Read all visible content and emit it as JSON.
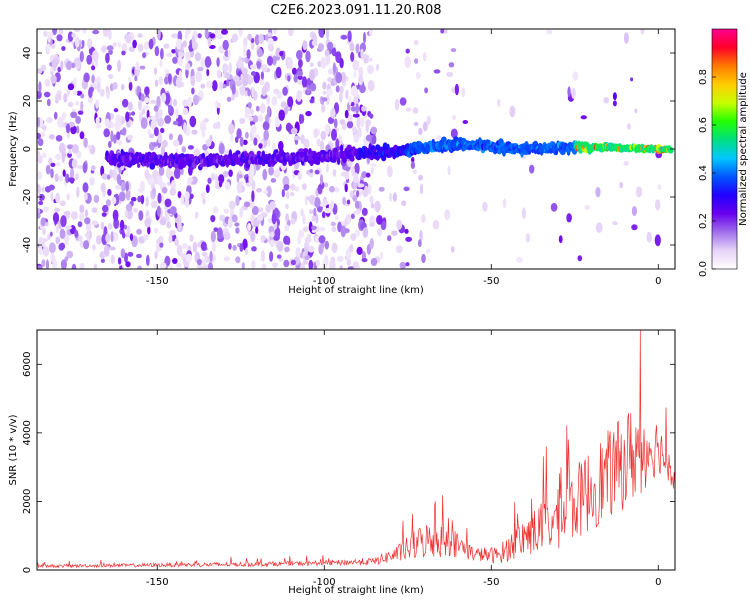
{
  "figure": {
    "title": "C2E6.2023.091.11.20.R08"
  },
  "chart_data": [
    {
      "type": "heatmap",
      "xlabel": "Height of straight line (km)",
      "ylabel": "Frequency (Hz)",
      "xlim": [
        -186,
        5
      ],
      "ylim": [
        -50,
        50
      ],
      "xticks": [
        -150,
        -100,
        -50,
        0
      ],
      "yticks": [
        -40,
        -20,
        0,
        20,
        40
      ],
      "grid": false,
      "colorbar": {
        "label": "Normalized spectral amplitude",
        "range": [
          0,
          1
        ],
        "ticks": [
          0.0,
          0.2,
          0.4,
          0.6,
          0.8
        ],
        "colormap": [
          "#ffffff",
          "#e6d3f7",
          "#a070ec",
          "#6a00ee",
          "#2200ff",
          "#0055ff",
          "#00c8ff",
          "#00e080",
          "#22ff00",
          "#c8ff00",
          "#ffcc00",
          "#ff7a00",
          "#ff0028",
          "#ff0090"
        ]
      },
      "main_band_centre_hz": [
        {
          "x": -160,
          "y": -4
        },
        {
          "x": -140,
          "y": -5
        },
        {
          "x": -120,
          "y": -4
        },
        {
          "x": -100,
          "y": -3
        },
        {
          "x": -80,
          "y": -1
        },
        {
          "x": -60,
          "y": 2
        },
        {
          "x": -40,
          "y": 0
        },
        {
          "x": -20,
          "y": 1
        },
        {
          "x": 0,
          "y": 0
        }
      ]
    },
    {
      "type": "line",
      "xlabel": "Height of straight line (km)",
      "ylabel": "SNR (10 * v/v)",
      "xlim": [
        -186,
        5
      ],
      "ylim": [
        0,
        7000
      ],
      "xticks": [
        -150,
        -100,
        -50,
        0
      ],
      "yticks": [
        0,
        2000,
        4000,
        6000
      ],
      "grid": false,
      "series_color": "#ee3030",
      "envelope": [
        {
          "x": -186,
          "base": 100,
          "amp": 80
        },
        {
          "x": -130,
          "base": 140,
          "amp": 130
        },
        {
          "x": -100,
          "base": 180,
          "amp": 140
        },
        {
          "x": -85,
          "base": 220,
          "amp": 220
        },
        {
          "x": -78,
          "base": 400,
          "amp": 500
        },
        {
          "x": -70,
          "base": 700,
          "amp": 1100
        },
        {
          "x": -62,
          "base": 700,
          "amp": 900
        },
        {
          "x": -55,
          "base": 400,
          "amp": 400
        },
        {
          "x": -48,
          "base": 350,
          "amp": 500
        },
        {
          "x": -40,
          "base": 800,
          "amp": 1200
        },
        {
          "x": -30,
          "base": 1200,
          "amp": 1800
        },
        {
          "x": -20,
          "base": 2000,
          "amp": 2500
        },
        {
          "x": -12,
          "base": 2600,
          "amp": 2700
        },
        {
          "x": -7,
          "base": 3000,
          "amp": 3000
        },
        {
          "x": 0,
          "base": 3400,
          "amp": 1600
        },
        {
          "x": 5,
          "base": 2600,
          "amp": 800
        }
      ]
    }
  ]
}
